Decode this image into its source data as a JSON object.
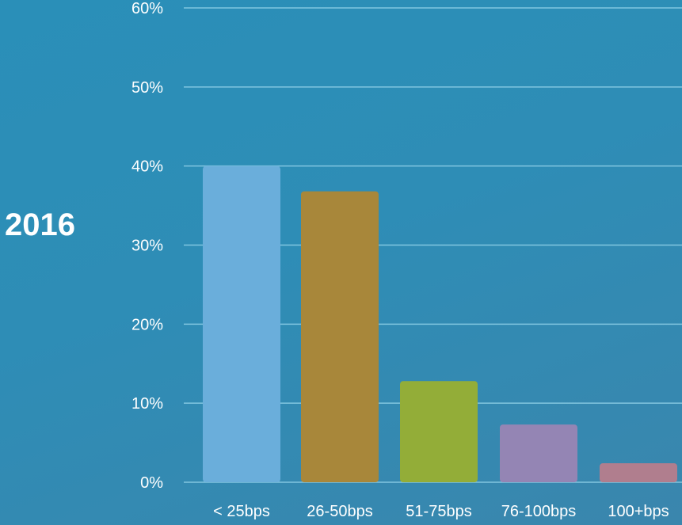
{
  "side_label": "2016",
  "colors": {
    "grid": "#8fd0e8",
    "text": "#ffffff"
  },
  "chart_data": {
    "type": "bar",
    "categories": [
      "< 25bps",
      "26-50bps",
      "51-75bps",
      "76-100bps",
      "100+bps"
    ],
    "values": [
      40,
      36.8,
      12.8,
      7.3,
      2.4
    ],
    "bar_colors": [
      "#6aaedb",
      "#a8873a",
      "#93ad38",
      "#9485b4",
      "#b07e8e"
    ],
    "ylim": [
      0,
      60
    ],
    "yticks": [
      "0%",
      "10%",
      "20%",
      "30%",
      "40%",
      "50%",
      "60%"
    ],
    "ytick_values": [
      0,
      10,
      20,
      30,
      40,
      50,
      60
    ],
    "grid": true,
    "title": "",
    "xlabel": "",
    "ylabel": ""
  }
}
